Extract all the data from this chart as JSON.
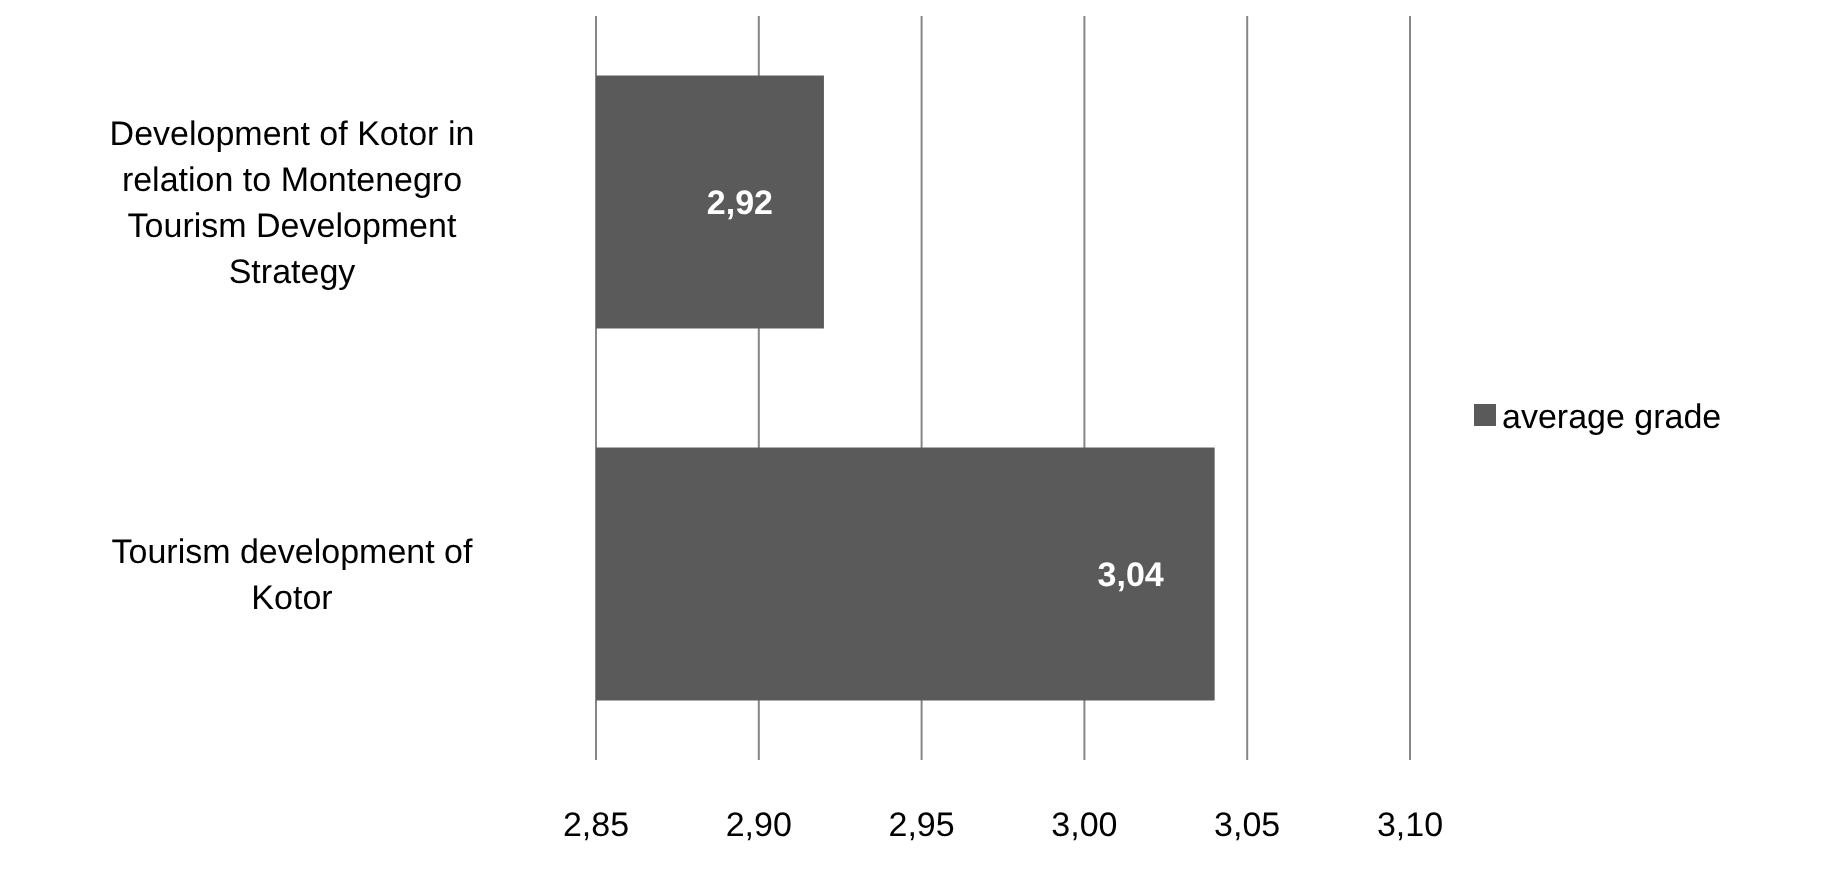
{
  "chart_data": {
    "type": "bar",
    "orientation": "horizontal",
    "categories": [
      "Development of Kotor in relation to Montenegro Tourism Development Strategy",
      "Tourism development of Kotor"
    ],
    "series": [
      {
        "name": "average grade",
        "color": "#5a5a5a",
        "values": [
          2.92,
          3.04
        ],
        "value_labels": [
          "2,92",
          "3,04"
        ]
      }
    ],
    "xlim": [
      2.85,
      3.1
    ],
    "xticks": [
      {
        "value": 2.85,
        "label": "2,85"
      },
      {
        "value": 2.9,
        "label": "2,90"
      },
      {
        "value": 2.95,
        "label": "2,95"
      },
      {
        "value": 3.0,
        "label": "3,00"
      },
      {
        "value": 3.05,
        "label": "3,05"
      },
      {
        "value": 3.1,
        "label": "3,10"
      }
    ],
    "grid": "x",
    "legend": "right"
  }
}
